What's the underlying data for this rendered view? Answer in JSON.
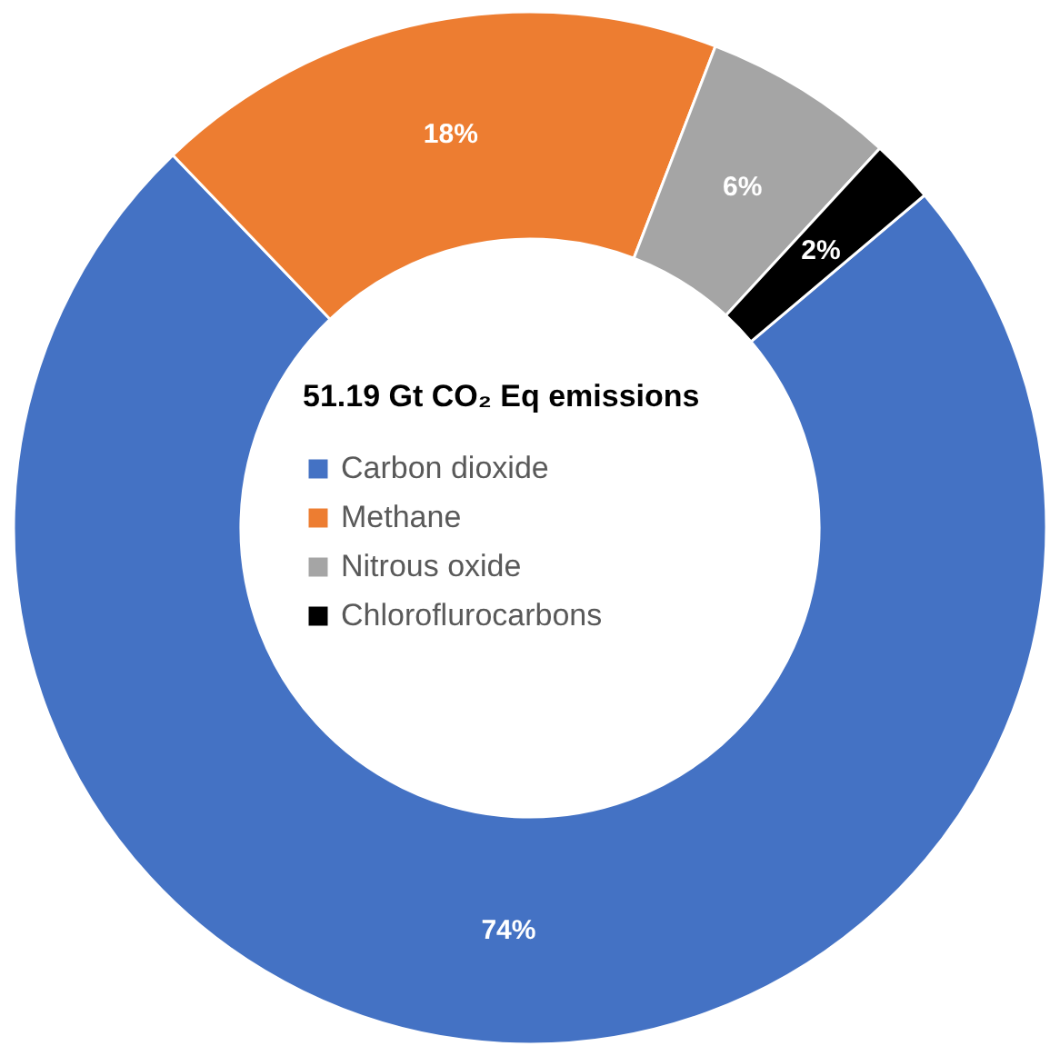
{
  "chart_data": {
    "type": "donut",
    "legend_title": "51.19 Gt CO₂ Eq emissions",
    "categories": [
      "Carbon dioxide",
      "Methane",
      "Nitrous oxide",
      "Chloroflurocarbons"
    ],
    "values": [
      74,
      18,
      6,
      2
    ],
    "colors": [
      "#4472c4",
      "#ed7d31",
      "#a5a5a5",
      "#000000"
    ],
    "value_labels": [
      "74%",
      "18%",
      "6%",
      "2%"
    ],
    "legend": "center"
  }
}
